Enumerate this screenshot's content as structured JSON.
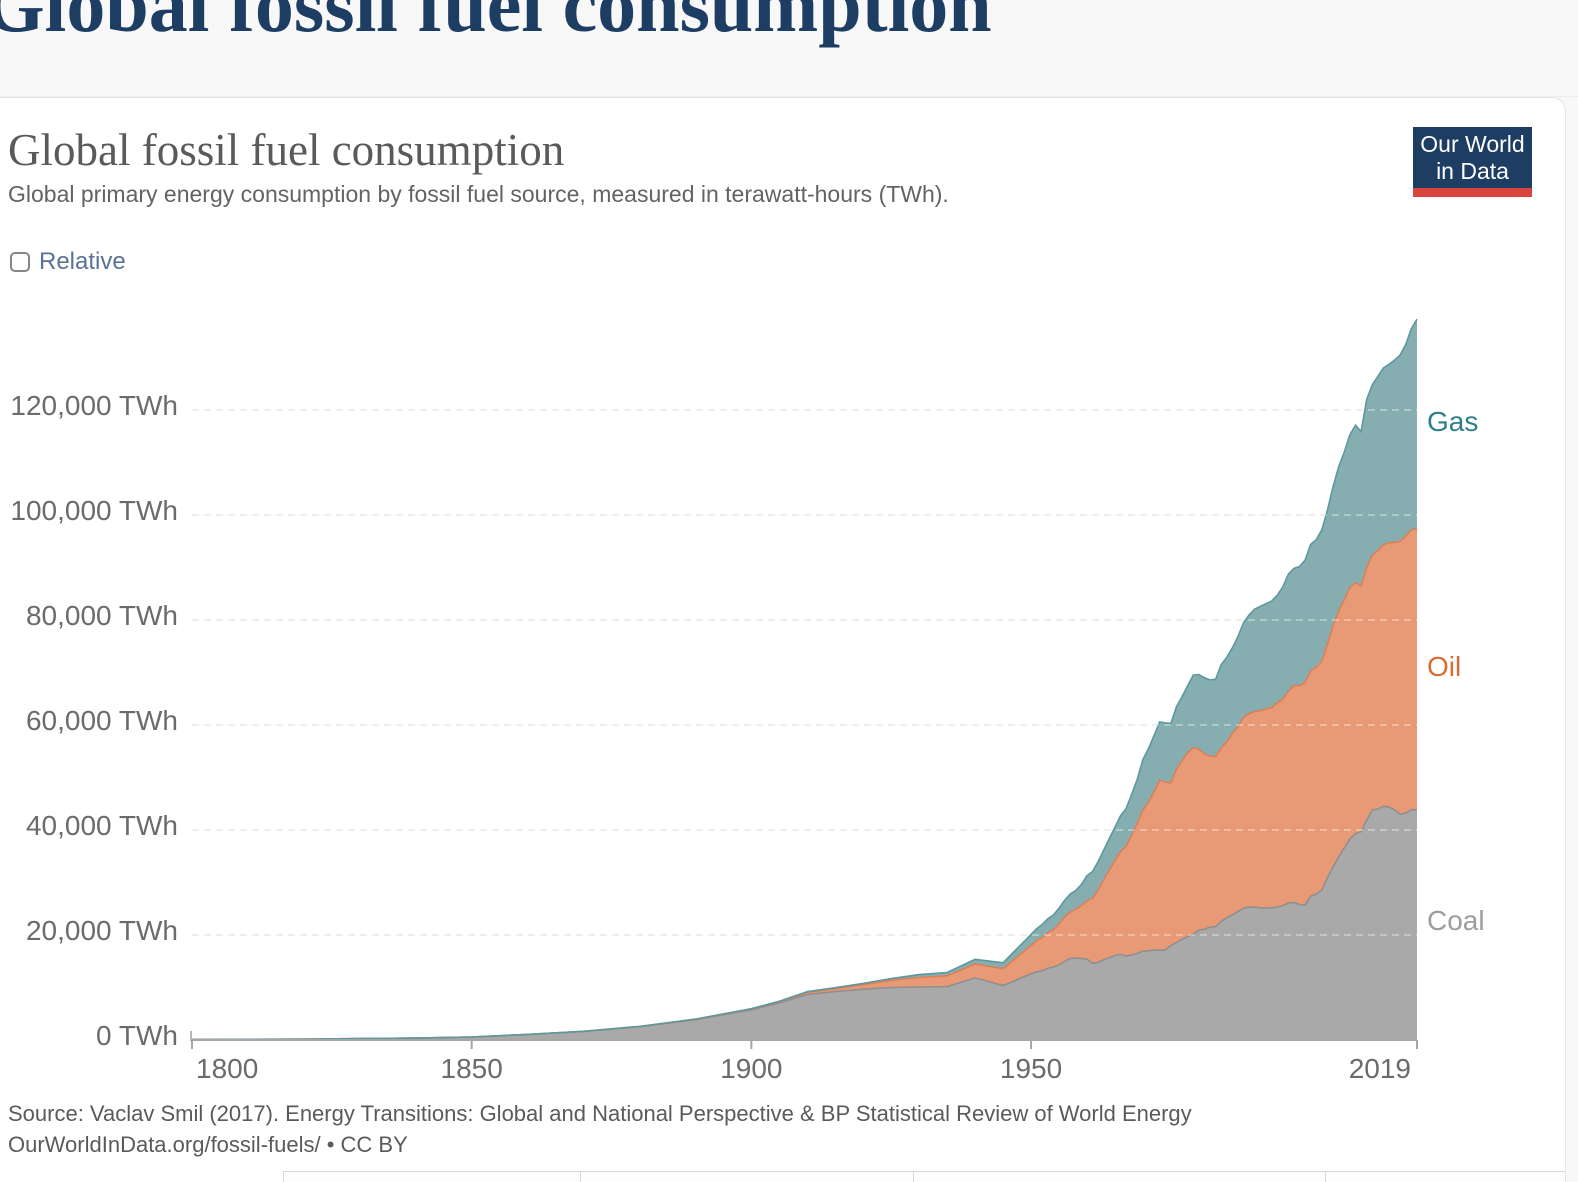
{
  "page_header": {
    "title": "Global fossil fuel consumption"
  },
  "chart_header": {
    "title": "Global fossil fuel consumption",
    "subtitle": "Global primary energy consumption by fossil fuel source, measured in terawatt-hours (TWh).",
    "logo": {
      "line1": "Our World",
      "line2": "in Data",
      "bg_color": "#1d3d63",
      "bar_color": "#d9443c"
    }
  },
  "controls": {
    "relative_label": "Relative",
    "relative_checked": false
  },
  "footer": {
    "source_line1": "Source: Vaclav Smil (2017). Energy Transitions: Global and National Perspective & BP Statistical Review of World Energy",
    "source_line2": "OurWorldInData.org/fossil-fuels/ • CC BY"
  },
  "chart_data": {
    "type": "area",
    "stacked": true,
    "title": "Global fossil fuel consumption",
    "unit": "TWh",
    "grid": true,
    "legend_position": "right-edge-labels",
    "xlim": [
      1800,
      2019
    ],
    "ylim": [
      0,
      140000
    ],
    "x_ticks": [
      "1800",
      "1850",
      "1900",
      "1950",
      "2019"
    ],
    "x_tick_years": [
      1800,
      1850,
      1900,
      1950,
      2019
    ],
    "y_ticks": [
      "0 TWh",
      "20,000 TWh",
      "40,000 TWh",
      "60,000 TWh",
      "80,000 TWh",
      "100,000 TWh",
      "120,000 TWh"
    ],
    "y_tick_values": [
      0,
      20000,
      40000,
      60000,
      80000,
      100000,
      120000
    ],
    "years": [
      1800,
      1810,
      1820,
      1830,
      1840,
      1850,
      1860,
      1870,
      1880,
      1890,
      1900,
      1905,
      1910,
      1915,
      1920,
      1925,
      1930,
      1935,
      1940,
      1945,
      1950,
      1951,
      1952,
      1953,
      1954,
      1955,
      1956,
      1957,
      1958,
      1959,
      1960,
      1961,
      1962,
      1963,
      1964,
      1965,
      1966,
      1967,
      1968,
      1969,
      1970,
      1971,
      1972,
      1973,
      1974,
      1975,
      1976,
      1977,
      1978,
      1979,
      1980,
      1981,
      1982,
      1983,
      1984,
      1985,
      1986,
      1987,
      1988,
      1989,
      1990,
      1991,
      1992,
      1993,
      1994,
      1995,
      1996,
      1997,
      1998,
      1999,
      2000,
      2001,
      2002,
      2003,
      2004,
      2005,
      2006,
      2007,
      2008,
      2009,
      2010,
      2011,
      2012,
      2013,
      2014,
      2015,
      2016,
      2017,
      2018,
      2019
    ],
    "series": [
      {
        "name": "Coal",
        "fill": "#a9a9a9",
        "stroke": "#8f8f8f",
        "label_color": "#9d9d9d",
        "values": [
          100,
          130,
          150,
          260,
          360,
          570,
          1060,
          1640,
          2540,
          3860,
          5730,
          7050,
          8660,
          9220,
          9670,
          10000,
          10100,
          10150,
          11830,
          10390,
          12600,
          13000,
          13200,
          13700,
          13900,
          14300,
          15000,
          15500,
          15600,
          15500,
          15400,
          14600,
          14800,
          15300,
          15700,
          16100,
          16300,
          16000,
          16200,
          16500,
          16900,
          17000,
          17100,
          17100,
          17200,
          18000,
          18600,
          19200,
          19700,
          20200,
          20900,
          21100,
          21500,
          21600,
          22600,
          23300,
          23800,
          24500,
          25100,
          25300,
          25300,
          25200,
          25100,
          25200,
          25300,
          25600,
          26100,
          26200,
          25800,
          25700,
          27400,
          27800,
          28600,
          31000,
          33000,
          34900,
          36600,
          38300,
          39300,
          39700,
          41900,
          43800,
          44000,
          44500,
          44400,
          43800,
          43000,
          43200,
          43900,
          43800
        ]
      },
      {
        "name": "Oil",
        "fill": "#e89a77",
        "stroke": "#dd7f55",
        "label_color": "#dd6b32",
        "values": [
          0,
          0,
          0,
          0,
          0,
          0,
          0,
          10,
          30,
          90,
          180,
          250,
          400,
          560,
          890,
          1370,
          1800,
          2070,
          2650,
          3170,
          5400,
          5900,
          6300,
          6700,
          7100,
          7800,
          8400,
          8900,
          9300,
          10100,
          11100,
          12400,
          13800,
          15200,
          16700,
          18100,
          19600,
          20900,
          22800,
          24800,
          26900,
          28300,
          30200,
          32400,
          31900,
          31000,
          33000,
          34000,
          35000,
          35500,
          34500,
          33400,
          32600,
          32400,
          33000,
          33500,
          34600,
          35200,
          36300,
          36900,
          37300,
          37500,
          38000,
          38100,
          38900,
          39400,
          40300,
          41300,
          41700,
          42400,
          42900,
          43200,
          43600,
          44400,
          45900,
          46800,
          47300,
          47900,
          47800,
          46800,
          48100,
          48500,
          49200,
          49800,
          50300,
          51000,
          52000,
          52800,
          53300,
          53600
        ]
      },
      {
        "name": "Gas",
        "fill": "#86aeb0",
        "stroke": "#5b989f",
        "label_color": "#2e7e8c",
        "values": [
          0,
          0,
          0,
          0,
          0,
          0,
          0,
          0,
          20,
          40,
          60,
          80,
          140,
          180,
          230,
          330,
          560,
          640,
          890,
          1140,
          2100,
          2300,
          2500,
          2700,
          2800,
          3000,
          3200,
          3400,
          3600,
          4000,
          4800,
          5100,
          5400,
          5700,
          6000,
          6300,
          6800,
          7200,
          7800,
          8400,
          9600,
          10200,
          10700,
          11100,
          11300,
          11300,
          11900,
          12200,
          12800,
          13800,
          14200,
          14500,
          14500,
          14700,
          15900,
          16100,
          16300,
          17200,
          18100,
          18800,
          19500,
          19900,
          20000,
          20300,
          20500,
          21300,
          22300,
          22300,
          22700,
          23300,
          24100,
          24300,
          25000,
          25600,
          26500,
          27500,
          28100,
          29100,
          30000,
          29400,
          32000,
          32500,
          33200,
          33700,
          34000,
          34700,
          35500,
          36500,
          38300,
          39900
        ]
      }
    ]
  }
}
